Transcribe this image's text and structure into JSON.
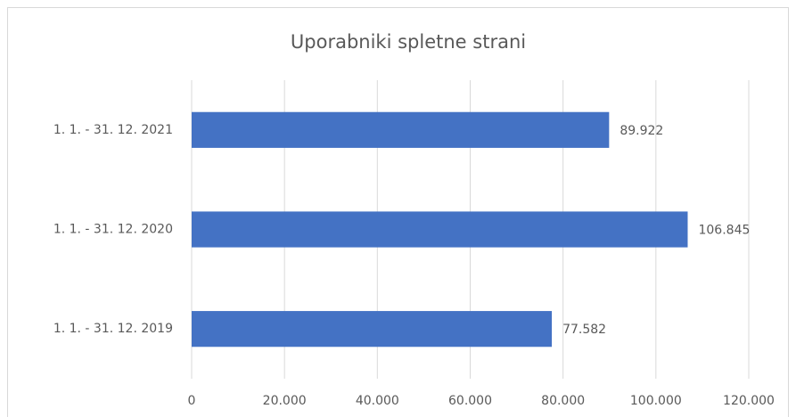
{
  "chart_data": {
    "type": "bar",
    "orientation": "horizontal",
    "title": "Uporabniki spletne strani",
    "categories": [
      "1. 1. - 31. 12. 2021",
      "1. 1. - 31. 12. 2020",
      "1. 1. - 31. 12. 2019"
    ],
    "values": [
      89922,
      106845,
      77582
    ],
    "value_labels": [
      "89.922",
      "106.845",
      "77.582"
    ],
    "color": "#4472c4",
    "xlim": [
      0,
      120000
    ],
    "xticks": [
      0,
      {
        "value": 20000,
        "label": "20.000"
      },
      {
        "value": 40000,
        "label": "40.000"
      },
      {
        "value": 60000,
        "label": "60.000"
      },
      {
        "value": 80000,
        "label": "80.000"
      },
      {
        "value": 100000,
        "label": "100.000"
      },
      {
        "value": 120000,
        "label": "120.000"
      }
    ],
    "grid": true
  }
}
